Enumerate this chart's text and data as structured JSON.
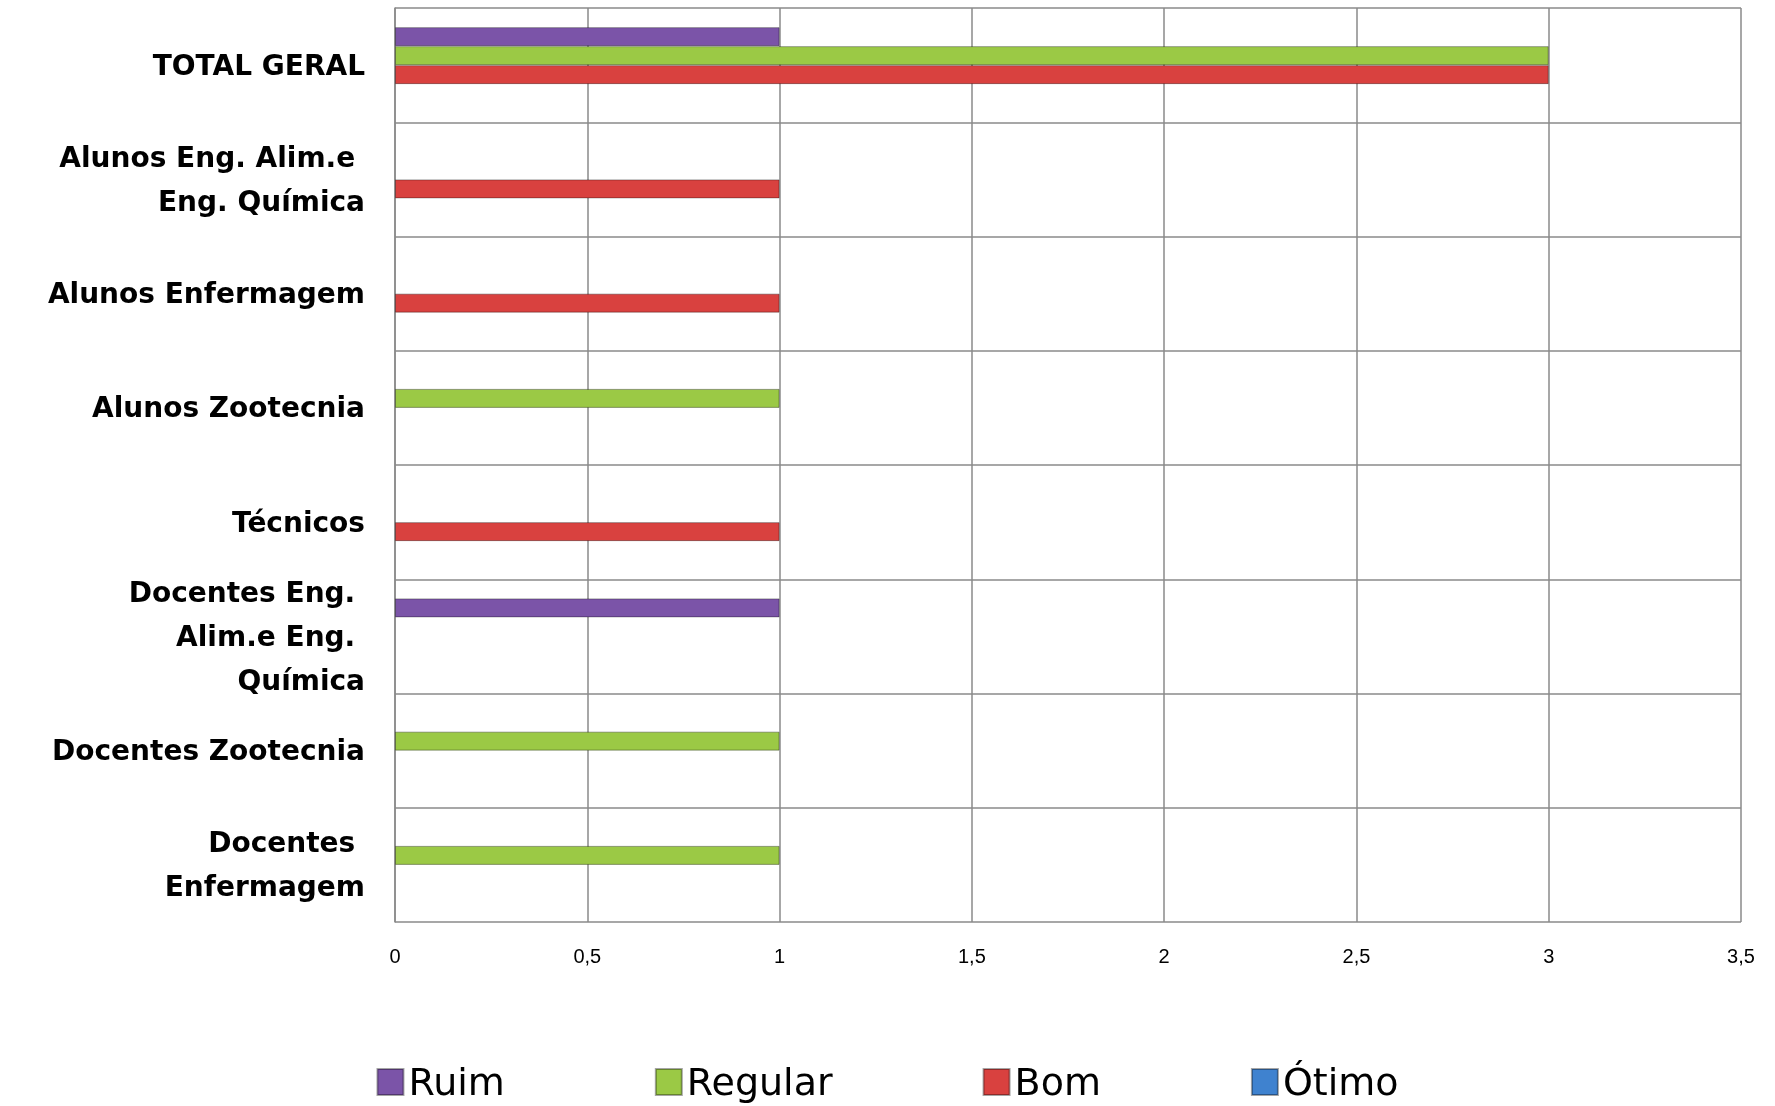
{
  "chart_data": {
    "type": "bar",
    "orientation": "horizontal",
    "categories": [
      "TOTAL GERAL",
      "Alunos Eng. Alim.e Eng. Química",
      "Alunos Enfermagem",
      "Alunos Zootecnia",
      "Técnicos",
      "Docentes Eng. Alim.e Eng. Química",
      "Docentes Zootecnia",
      "Docentes Enfermagem"
    ],
    "series": [
      {
        "name": "Ruim",
        "color": "#7b54a8",
        "values": [
          1,
          null,
          null,
          null,
          null,
          1,
          null,
          null
        ]
      },
      {
        "name": "Regular",
        "color": "#9bc945",
        "values": [
          3,
          null,
          null,
          1,
          null,
          null,
          1,
          1
        ]
      },
      {
        "name": "Bom",
        "color": "#d9413f",
        "values": [
          3,
          1,
          1,
          null,
          1,
          null,
          null,
          null
        ]
      },
      {
        "name": "Ótimo",
        "color": "#3f82cf",
        "values": [
          null,
          null,
          null,
          null,
          null,
          null,
          null,
          null
        ]
      }
    ],
    "xlim": [
      0,
      3.5
    ],
    "xticks": [
      0,
      {
        "value": 0.5,
        "label": "0,5"
      },
      1,
      {
        "value": 1.5,
        "label": "1,5"
      },
      2,
      {
        "value": 2.5,
        "label": "2,5"
      },
      3,
      {
        "value": 3.5,
        "label": "3,5"
      }
    ],
    "grid": true,
    "legend": "bottom"
  }
}
